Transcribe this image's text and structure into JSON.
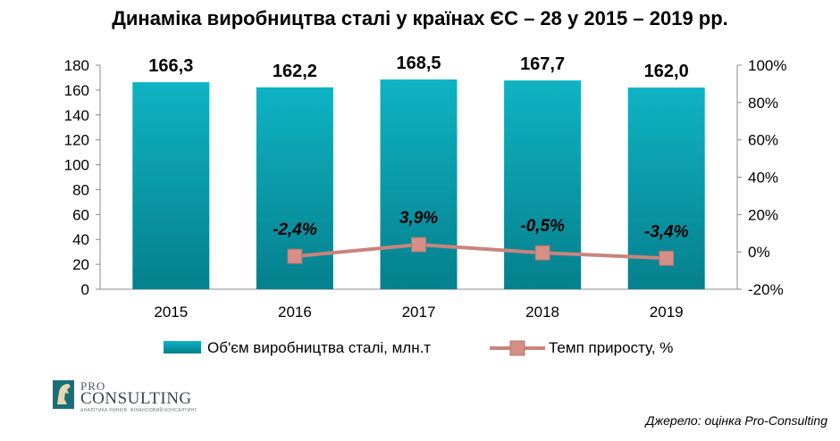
{
  "title": "Динаміка виробництва сталі у країнах ЄС – 28 у 2015 – 2019 рр.",
  "source": "Джерело: оцінка Pro-Consulting",
  "logo": {
    "pro": "PRO",
    "consulting": "CONSULTING",
    "tagline": "АНАЛІТИКА РИНКІВ. ФІНАНСОВИЙ КОНСАЛТИНГ"
  },
  "colors": {
    "bar": "#0aa3b3",
    "bar_dark": "#067f8c",
    "line": "#c9847c",
    "marker": "#d58f87"
  },
  "chart_data": {
    "type": "bar",
    "categories": [
      "2015",
      "2016",
      "2017",
      "2018",
      "2019"
    ],
    "series": [
      {
        "name": "Об'єм виробництва  сталі, млн.т",
        "type": "bar",
        "axis": "left",
        "values": [
          166.3,
          162.2,
          168.5,
          167.7,
          162.0
        ],
        "labels": [
          "166,3",
          "162,2",
          "168,5",
          "167,7",
          "162,0"
        ]
      },
      {
        "name": "Темп приросту,  %",
        "type": "line",
        "axis": "right",
        "values": [
          null,
          -2.4,
          3.9,
          -0.5,
          -3.4
        ],
        "labels": [
          "",
          "-2,4%",
          "3,9%",
          "-0,5%",
          "-3,4%"
        ]
      }
    ],
    "y_left": {
      "min": 0,
      "max": 180,
      "ticks": [
        "0",
        "20",
        "40",
        "60",
        "80",
        "100",
        "120",
        "140",
        "160",
        "180"
      ]
    },
    "y_right": {
      "min": -20,
      "max": 100,
      "ticks": [
        "-20%",
        "0%",
        "20%",
        "40%",
        "60%",
        "80%",
        "100%"
      ]
    },
    "grid": false,
    "legend": "bottom"
  }
}
